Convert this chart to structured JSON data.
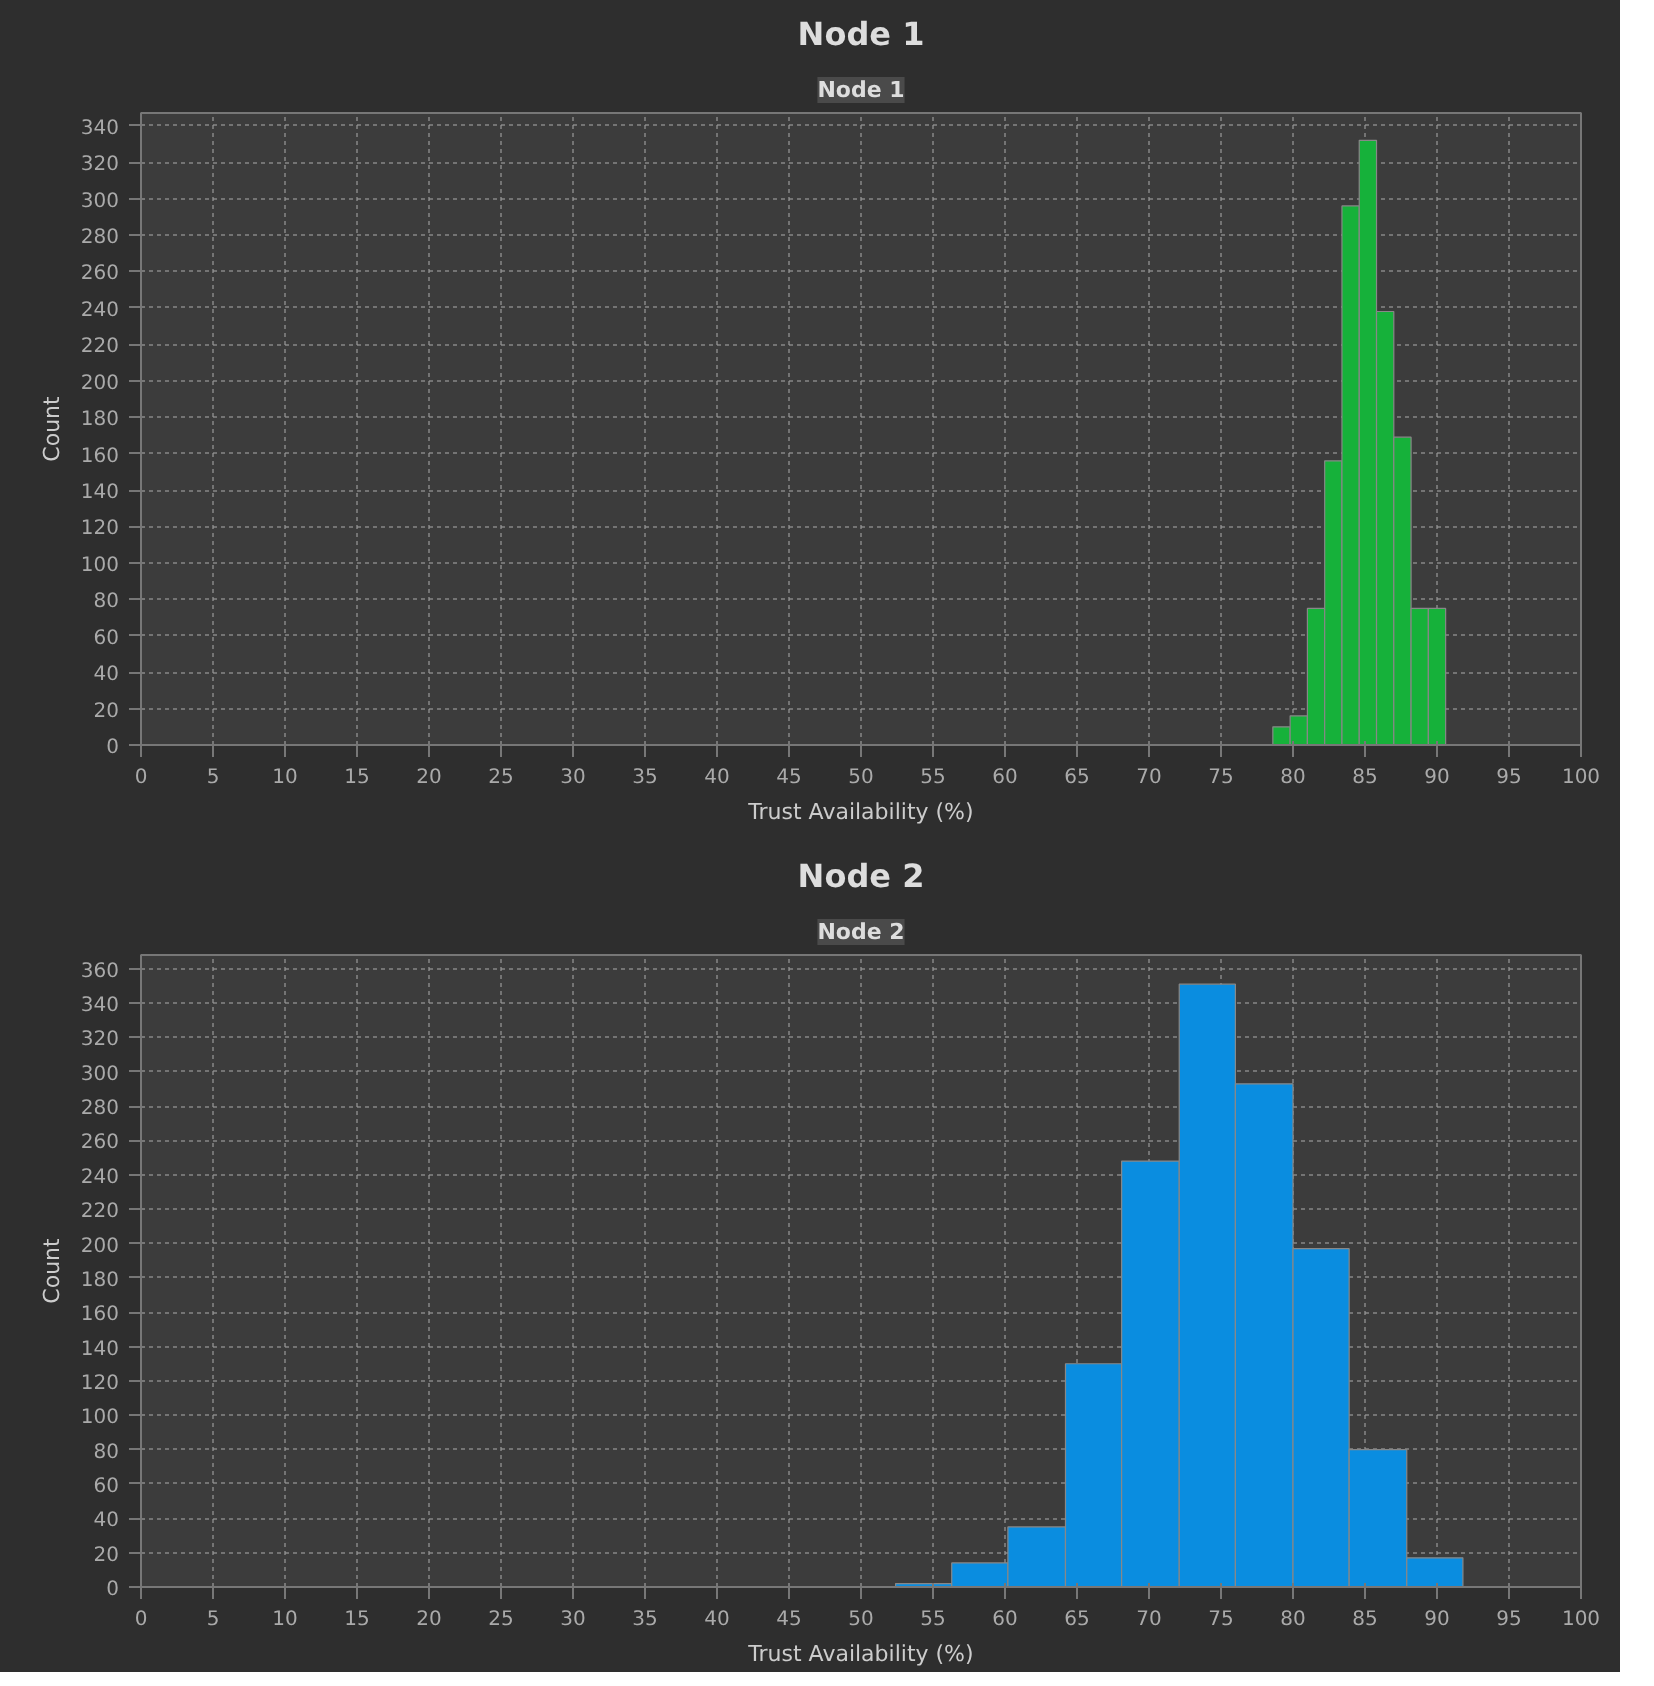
{
  "chart_data": [
    {
      "type": "histogram",
      "title": "Node 1",
      "annotations": [
        "Node 1"
      ],
      "xlabel": "Trust Availability (%)",
      "ylabel": "Count",
      "color": "#16b13a",
      "bins": [
        78.6,
        79.8,
        81.0,
        82.2,
        83.4,
        84.6,
        85.8,
        87.0,
        88.2,
        89.4,
        90.6
      ],
      "values": [
        10,
        16,
        75,
        156,
        296,
        332,
        238,
        169,
        75,
        75
      ],
      "xlim": [
        0,
        100
      ],
      "xticks": [
        0,
        5,
        10,
        15,
        20,
        25,
        30,
        35,
        40,
        45,
        50,
        55,
        60,
        65,
        70,
        75,
        80,
        85,
        90,
        95,
        100
      ],
      "ylim": [
        0,
        347
      ],
      "yticks": [
        0,
        20,
        40,
        60,
        80,
        100,
        120,
        140,
        160,
        180,
        200,
        220,
        240,
        260,
        280,
        300,
        320,
        340
      ],
      "grid": true
    },
    {
      "type": "histogram",
      "title": "Node 2",
      "annotations": [
        "Node 2"
      ],
      "xlabel": "Trust Availability (%)",
      "ylabel": "Count",
      "color": "#0a8de0",
      "bins": [
        52.4,
        56.3,
        60.2,
        64.2,
        68.1,
        72.1,
        76.0,
        80.0,
        83.9,
        87.9,
        91.8
      ],
      "values": [
        2,
        14,
        35,
        130,
        248,
        351,
        293,
        197,
        80,
        17
      ],
      "xlim": [
        0,
        100
      ],
      "xticks": [
        0,
        5,
        10,
        15,
        20,
        25,
        30,
        35,
        40,
        45,
        50,
        55,
        60,
        65,
        70,
        75,
        80,
        85,
        90,
        95,
        100
      ],
      "ylim": [
        0,
        368
      ],
      "yticks": [
        0,
        20,
        40,
        60,
        80,
        100,
        120,
        140,
        160,
        180,
        200,
        220,
        240,
        260,
        280,
        300,
        320,
        340,
        360
      ],
      "grid": true
    }
  ]
}
